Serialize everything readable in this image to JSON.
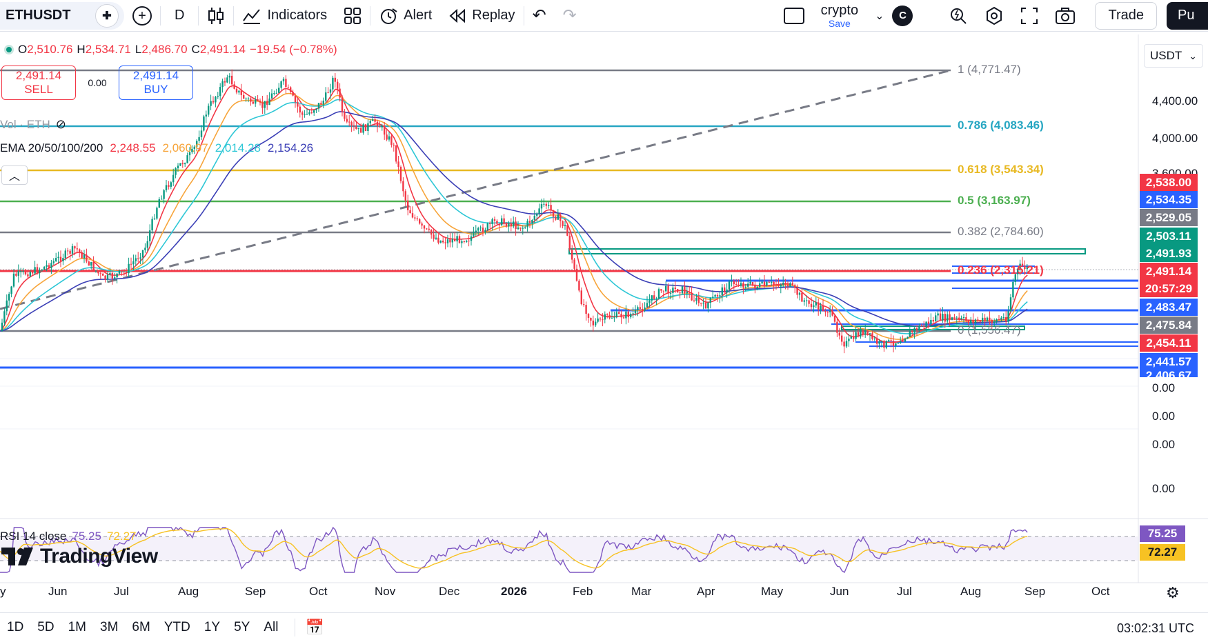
{
  "toolbar": {
    "symbol": "ETHUSDT",
    "interval": "D",
    "indicators_label": "Indicators",
    "alert_label": "Alert",
    "replay_label": "Replay",
    "layout_name": "crypto",
    "save_label": "Save",
    "avatar_letter": "C",
    "trade_label": "Trade",
    "publish_label": "Pu"
  },
  "legend": {
    "o_label": "O",
    "o_value": "2,510.76",
    "h_label": "H",
    "h_value": "2,534.71",
    "l_label": "L",
    "l_value": "2,486.70",
    "c_label": "C",
    "c_value": "2,491.14",
    "change": "−19.54 (−0.78%)"
  },
  "trade": {
    "sell_price": "2,491.14",
    "sell_label": "SELL",
    "spread": "0.00",
    "buy_price": "2,491.14",
    "buy_label": "BUY"
  },
  "volume": {
    "label": "Vol · ETH"
  },
  "ema": {
    "label": "EMA 20/50/100/200",
    "v20": "2,248.55",
    "v50": "2,060.97",
    "v100": "2,014.28",
    "v200": "2,154.26",
    "colors": {
      "v20": "#f23645",
      "v50": "#f7a53b",
      "v100": "#2ec7d6",
      "v200": "#3b3fb6"
    }
  },
  "currency": "USDT",
  "fib": [
    {
      "label": "1 (4,771.47)",
      "color": "#787b86"
    },
    {
      "label": "0.786 (4,083.46)",
      "color": "#26a6c2"
    },
    {
      "label": "0.618 (3,543.34)",
      "color": "#e8b923"
    },
    {
      "label": "0.5 (3,163.97)",
      "color": "#4caf50"
    },
    {
      "label": "0.382 (2,784.60)",
      "color": "#787b86"
    },
    {
      "label": "0.236 (2,315.21)",
      "color": "#f23645"
    },
    {
      "label": "0 (1,556.47)",
      "color": "#787b86"
    }
  ],
  "price_axis": [
    "4,400.00",
    "4,000.00",
    "3,600.00",
    "0.00",
    "0.00",
    "0.00",
    "0.00"
  ],
  "price_tags": [
    {
      "text": "2,538.00",
      "color": "#f23645"
    },
    {
      "text": "2,534.35",
      "color": "#2962ff"
    },
    {
      "text": "2,529.05",
      "color": "#787b86"
    },
    {
      "text": "2,503.11",
      "color": "#089981"
    },
    {
      "text": "2,491.93",
      "color": "#089981"
    },
    {
      "text": "2,491.14",
      "color": "#f23645"
    },
    {
      "text": "20:57:29",
      "color": "#f23645"
    },
    {
      "text": "2,483.47",
      "color": "#2962ff"
    },
    {
      "text": "2,475.84",
      "color": "#787b86"
    },
    {
      "text": "2,454.11",
      "color": "#f23645"
    },
    {
      "text": "2,441.57",
      "color": "#2962ff"
    },
    {
      "text": "2,406.67",
      "color": "#2962ff"
    }
  ],
  "rsi": {
    "label": "RSI 14 close",
    "value": "75.25",
    "ma_value": "72.27",
    "tag_value": "75.25",
    "tag_ma": "72.27"
  },
  "watermark": "TradingView",
  "time_axis": [
    "y",
    "Jun",
    "Jul",
    "Aug",
    "Sep",
    "Oct",
    "Nov",
    "Dec",
    "2026",
    "Feb",
    "Mar",
    "Apr",
    "May",
    "Jun",
    "Jul",
    "Aug",
    "Sep",
    "Oct"
  ],
  "ranges": [
    "1D",
    "5D",
    "1M",
    "3M",
    "6M",
    "YTD",
    "1Y",
    "5Y",
    "All"
  ],
  "clock": "03:02:31 UTC"
}
